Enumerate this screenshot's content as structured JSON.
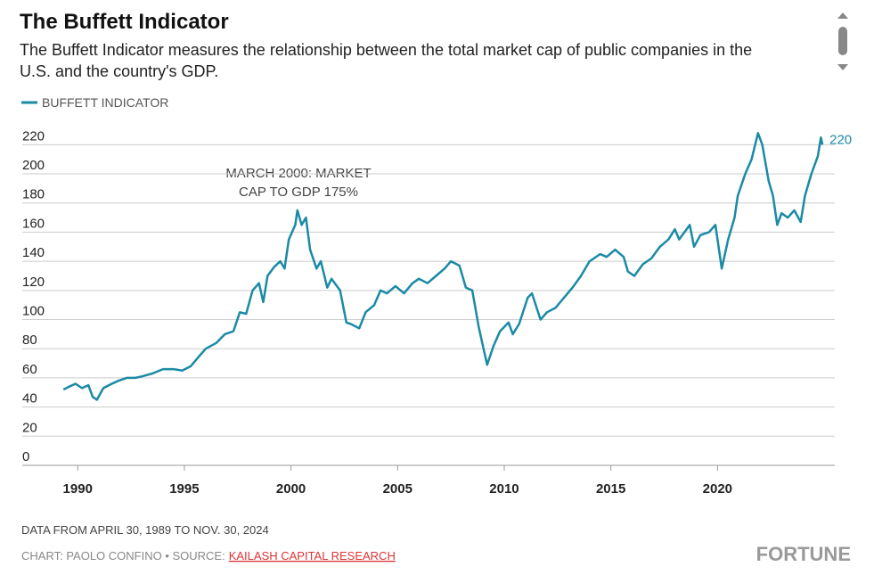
{
  "chart_data": {
    "type": "line",
    "title": "The Buffett Indicator",
    "subtitle": "The Buffett Indicator measures the relationship between the total market cap of public companies in the U.S. and the country's GDP.",
    "annotation": [
      "MARCH 2000: MARKET",
      "CAP TO GDP 175%"
    ],
    "note": "DATA FROM APRIL 30, 1989 TO NOV. 30, 2024",
    "credit": "CHART: PAOLO CONFINO • SOURCE:",
    "source": "KAILASH CAPITAL RESEARCH",
    "logo": "FORTUNE",
    "xlim": [
      1987.4,
      2025.5
    ],
    "xticks": [
      1990,
      1995,
      2000,
      2005,
      2010,
      2015,
      2020
    ],
    "ylim": [
      0,
      230
    ],
    "yticks": [
      0,
      20,
      40,
      60,
      80,
      100,
      120,
      140,
      160,
      180,
      200,
      220
    ],
    "grid": true,
    "x": [
      1989.33,
      1989.6,
      1989.9,
      1990.2,
      1990.5,
      1990.7,
      1990.9,
      1991.2,
      1991.6,
      1991.9,
      1992.3,
      1992.7,
      1993.0,
      1993.5,
      1994.0,
      1994.5,
      1994.9,
      1995.3,
      1995.7,
      1996.0,
      1996.5,
      1996.9,
      1997.3,
      1997.6,
      1997.9,
      1998.2,
      1998.5,
      1998.7,
      1998.9,
      1999.2,
      1999.5,
      1999.7,
      1999.9,
      2000.2,
      2000.3,
      2000.5,
      2000.7,
      2000.9,
      2001.2,
      2001.4,
      2001.7,
      2001.9,
      2002.3,
      2002.6,
      2002.8,
      2003.2,
      2003.5,
      2003.9,
      2004.2,
      2004.5,
      2004.9,
      2005.3,
      2005.7,
      2006.0,
      2006.4,
      2006.8,
      2007.2,
      2007.5,
      2007.9,
      2008.2,
      2008.5,
      2008.8,
      2009.0,
      2009.2,
      2009.5,
      2009.8,
      2010.2,
      2010.4,
      2010.7,
      2011.1,
      2011.3,
      2011.7,
      2012.0,
      2012.4,
      2012.8,
      2013.2,
      2013.6,
      2014.0,
      2014.5,
      2014.8,
      2015.2,
      2015.6,
      2015.8,
      2016.1,
      2016.5,
      2016.9,
      2017.3,
      2017.7,
      2018.0,
      2018.2,
      2018.7,
      2018.9,
      2019.2,
      2019.6,
      2019.9,
      2020.2,
      2020.5,
      2020.8,
      2020.95,
      2021.3,
      2021.6,
      2021.9,
      2022.1,
      2022.4,
      2022.6,
      2022.8,
      2023.0,
      2023.3,
      2023.6,
      2023.9,
      2024.1,
      2024.4,
      2024.7,
      2024.85,
      2024.92
    ],
    "series": [
      {
        "name": "BUFFETT INDICATOR",
        "color": "#1a8aa5",
        "values": [
          52,
          54,
          56,
          53,
          55,
          47,
          45,
          53,
          56,
          58,
          60,
          60,
          61,
          63,
          66,
          66,
          65,
          68,
          75,
          80,
          84,
          90,
          92,
          105,
          104,
          120,
          125,
          112,
          130,
          136,
          140,
          135,
          155,
          165,
          175,
          165,
          170,
          148,
          135,
          140,
          122,
          128,
          120,
          98,
          97,
          94,
          105,
          110,
          120,
          118,
          123,
          118,
          125,
          128,
          125,
          130,
          135,
          140,
          137,
          122,
          120,
          95,
          82,
          69,
          82,
          92,
          98,
          90,
          97,
          115,
          118,
          100,
          105,
          108,
          115,
          122,
          130,
          140,
          145,
          143,
          148,
          143,
          133,
          130,
          138,
          142,
          150,
          155,
          162,
          155,
          165,
          150,
          158,
          160,
          165,
          135,
          155,
          170,
          185,
          200,
          210,
          228,
          220,
          195,
          185,
          165,
          173,
          170,
          175,
          167,
          185,
          200,
          212,
          225,
          220
        ]
      }
    ]
  }
}
